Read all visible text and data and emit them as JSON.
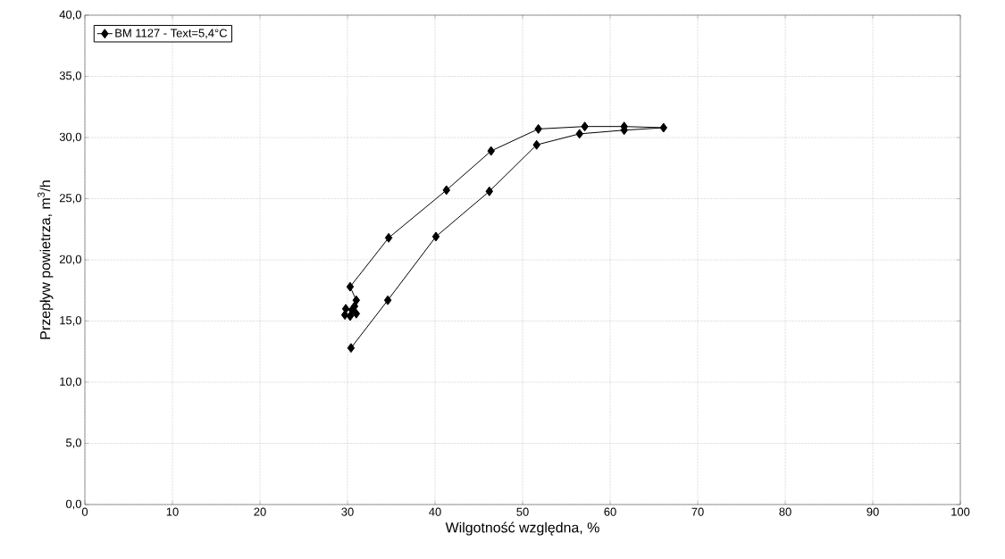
{
  "chart_data": {
    "type": "line",
    "xlabel": "Wilgotność względna, %",
    "ylabel": "Przepływ powietrza, m$^{3}$/h",
    "series": [
      {
        "name": "BM 1127 - Text=5,4°C",
        "color": "#000000",
        "x": [
          30.4,
          34.6,
          40.1,
          46.2,
          51.6,
          56.5,
          61.6,
          66.1,
          61.6,
          57.1,
          51.8,
          46.4,
          41.3,
          34.7,
          30.3,
          31.0,
          30.8,
          31.0,
          30.3,
          29.7,
          29.8,
          30.5
        ],
        "values": [
          12.8,
          16.7,
          21.9,
          25.6,
          29.4,
          30.3,
          30.6,
          30.8,
          30.9,
          30.9,
          30.7,
          28.9,
          25.7,
          21.8,
          17.8,
          16.7,
          16.2,
          15.6,
          15.4,
          15.5,
          16.0,
          15.9
        ]
      }
    ],
    "xlim": [
      0,
      100
    ],
    "xticks": [
      0,
      10,
      20,
      30,
      40,
      50,
      60,
      70,
      80,
      90,
      100
    ],
    "ylim": [
      0,
      40
    ],
    "yticks": [
      {
        "value": 0,
        "label": "0,0"
      },
      {
        "value": 5,
        "label": "5,0"
      },
      {
        "value": 10,
        "label": "10,0"
      },
      {
        "value": 15,
        "label": "15,0"
      },
      {
        "value": 20,
        "label": "20,0"
      },
      {
        "value": 25,
        "label": "25,0"
      },
      {
        "value": 30,
        "label": "30,0"
      },
      {
        "value": 35,
        "label": "35,0"
      },
      {
        "value": 40,
        "label": "40,0"
      }
    ],
    "grid": true,
    "legend": "top left",
    "marker": "diamond",
    "line_style": "solid"
  }
}
